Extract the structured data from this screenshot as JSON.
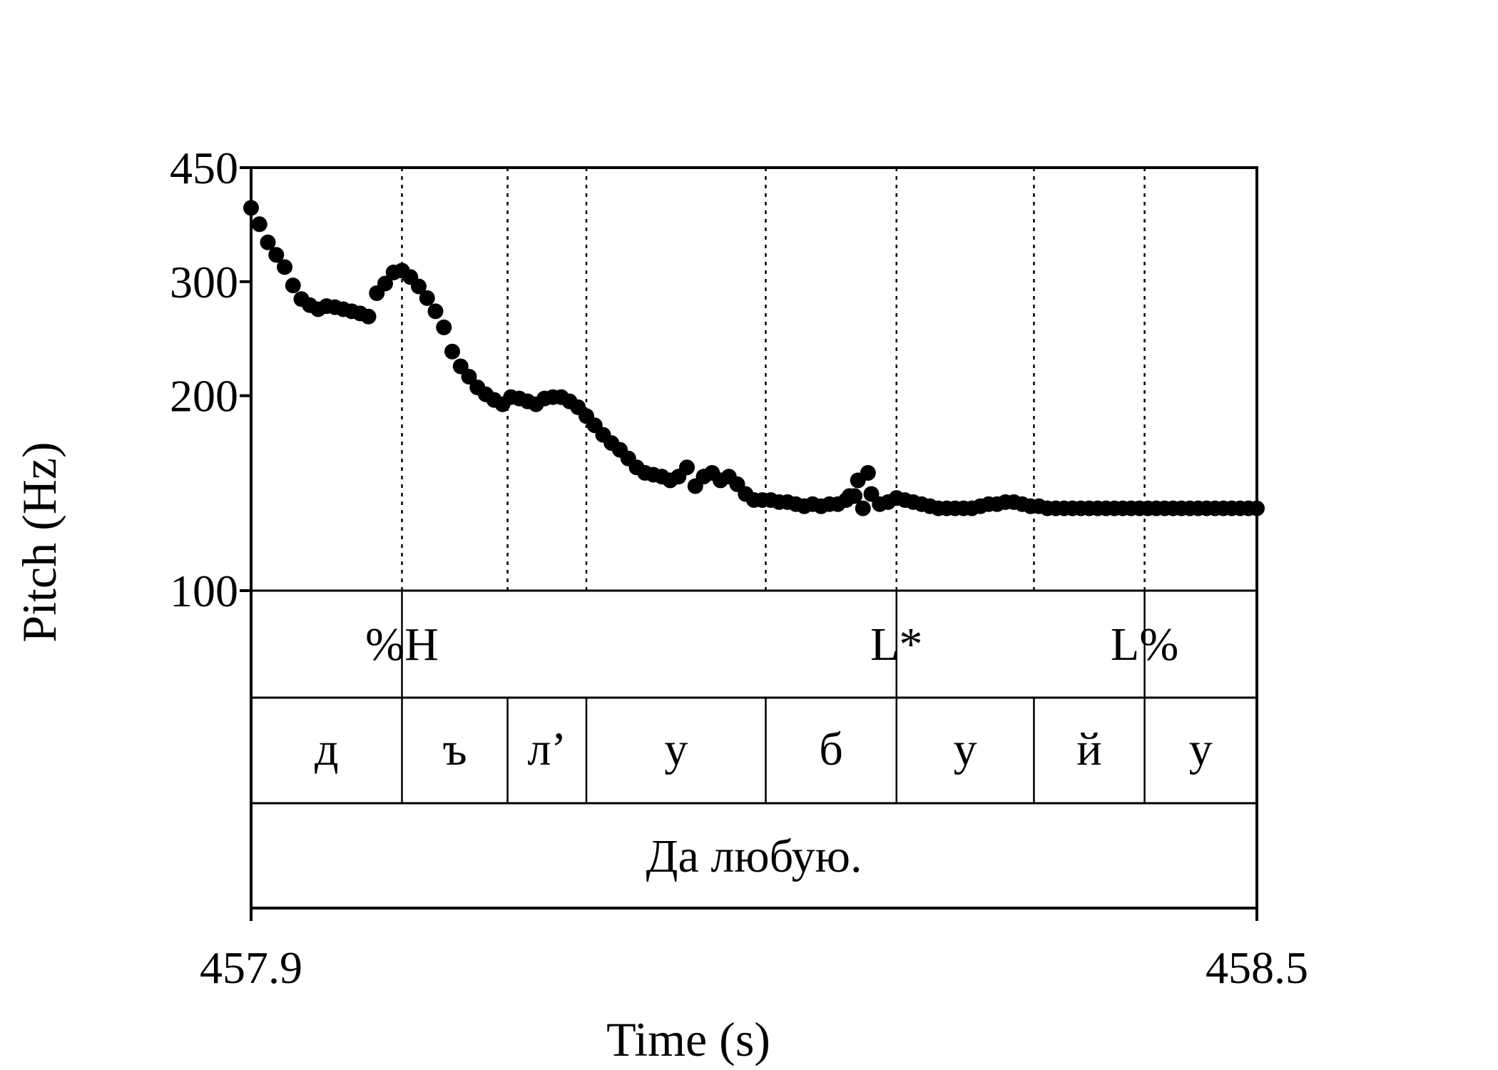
{
  "chart_data": {
    "type": "scatter",
    "title": "",
    "xlabel": "Time (s)",
    "ylabel": "Pitch (Hz)",
    "xlim": [
      457.9,
      458.5
    ],
    "ylim": [
      100,
      450
    ],
    "y_scale": "log",
    "x_ticks": [
      "457.9",
      "458.5"
    ],
    "y_ticks": [
      450,
      300,
      200,
      100
    ],
    "grid": false,
    "boundaries": [
      457.99,
      458.053,
      458.1,
      458.207,
      458.285,
      458.367,
      458.433
    ],
    "tones": [
      {
        "label": "%H",
        "time": 457.99
      },
      {
        "label": "L*",
        "time": 458.285
      },
      {
        "label": "L%",
        "time": 458.433
      }
    ],
    "segments": [
      {
        "label": "д",
        "start": 457.9,
        "end": 457.99
      },
      {
        "label": "ъ",
        "start": 457.99,
        "end": 458.053
      },
      {
        "label": "л’",
        "start": 458.053,
        "end": 458.1
      },
      {
        "label": "у",
        "start": 458.1,
        "end": 458.207
      },
      {
        "label": "б",
        "start": 458.207,
        "end": 458.285
      },
      {
        "label": "у",
        "start": 458.285,
        "end": 458.367
      },
      {
        "label": "й",
        "start": 458.367,
        "end": 458.433
      },
      {
        "label": "у",
        "start": 458.433,
        "end": 458.5
      }
    ],
    "sentence": "Да любую.",
    "series": [
      {
        "x": [
          457.9,
          457.905,
          457.91,
          457.915,
          457.92,
          457.925,
          457.93,
          457.935,
          457.94,
          457.945,
          457.95,
          457.955,
          457.96,
          457.965,
          457.97,
          457.975,
          457.98,
          457.985,
          457.99,
          457.995,
          458.0,
          458.005,
          458.01,
          458.015,
          458.02,
          458.025,
          458.03,
          458.035,
          458.04,
          458.045,
          458.05,
          458.055,
          458.06,
          458.065,
          458.07,
          458.075,
          458.08,
          458.085,
          458.09,
          458.095,
          458.1,
          458.105,
          458.11,
          458.115,
          458.12,
          458.125,
          458.13,
          458.135,
          458.14,
          458.145,
          458.15,
          458.155,
          458.16,
          458.165,
          458.17,
          458.175,
          458.18,
          458.185,
          458.19,
          458.195,
          458.2,
          458.205,
          458.21,
          458.215,
          458.22,
          458.225,
          458.23,
          458.235,
          458.24,
          458.245,
          458.25,
          458.255,
          458.26,
          458.265,
          458.27,
          458.275,
          458.28,
          458.285,
          458.29,
          458.295,
          458.3,
          458.305,
          458.31,
          458.315,
          458.32,
          458.325,
          458.33,
          458.335,
          458.34,
          458.345,
          458.35,
          458.355,
          458.36,
          458.365,
          458.37,
          458.375,
          458.38,
          458.385,
          458.39,
          458.395,
          458.4,
          458.405,
          458.41,
          458.415,
          458.42,
          458.425,
          458.43,
          458.435,
          458.44,
          458.445,
          458.45,
          458.455,
          458.46,
          458.465,
          458.47,
          458.475,
          458.48,
          458.485,
          458.49,
          458.495,
          458.5,
          458.257,
          458.262,
          458.268
        ],
        "y": [
          390,
          368,
          345,
          330,
          316,
          296,
          282,
          276,
          272,
          275,
          274,
          272,
          270,
          268,
          265,
          288,
          298,
          310,
          312,
          305,
          295,
          283,
          270,
          255,
          234,
          222,
          214,
          206,
          201,
          197,
          194,
          199,
          198,
          196,
          194,
          198,
          199,
          199,
          196,
          192,
          186,
          180,
          174,
          169,
          165,
          160,
          155,
          152,
          151,
          150,
          148,
          150,
          155,
          145,
          150,
          152,
          148,
          150,
          146,
          141,
          138,
          138,
          138,
          137,
          137,
          136,
          135,
          136,
          135,
          136,
          136,
          138,
          140,
          134,
          141,
          136,
          137,
          139,
          138,
          137,
          136,
          135,
          134,
          134,
          134,
          134,
          134,
          135,
          136,
          136,
          137,
          137,
          136,
          135,
          135,
          134,
          134,
          134,
          134,
          134,
          134,
          134,
          134,
          134,
          134,
          134,
          134,
          134,
          134,
          134,
          134,
          134,
          134,
          134,
          134,
          134,
          134,
          134,
          134,
          134,
          134,
          140,
          148,
          152
        ]
      }
    ]
  }
}
